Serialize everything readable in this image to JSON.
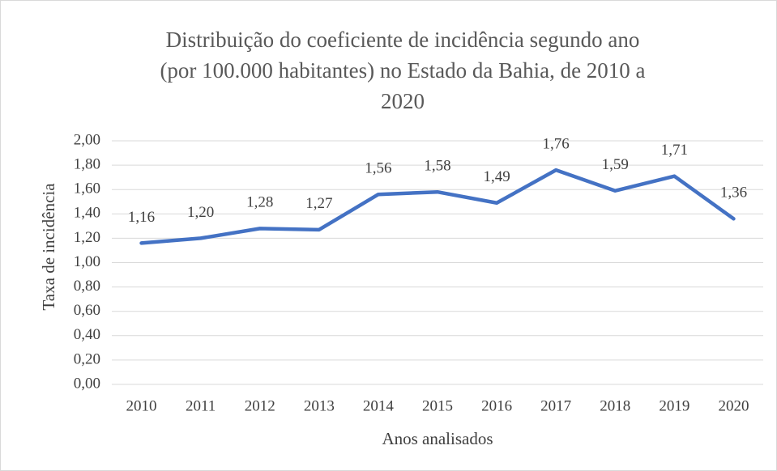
{
  "chart_data": {
    "type": "line",
    "title": [
      "Distribuição do coeficiente de incidência segundo ano",
      "(por 100.000 habitantes) no Estado da Bahia, de 2010 a",
      "2020"
    ],
    "x_label": "Anos analisados",
    "y_label": "Taxa de incidência",
    "categories": [
      "2010",
      "2011",
      "2012",
      "2013",
      "2014",
      "2015",
      "2016",
      "2017",
      "2018",
      "2019",
      "2020"
    ],
    "values": [
      1.16,
      1.2,
      1.28,
      1.27,
      1.56,
      1.58,
      1.49,
      1.76,
      1.59,
      1.71,
      1.36
    ],
    "value_labels": [
      "1,16",
      "1,20",
      "1,28",
      "1,27",
      "1,56",
      "1,58",
      "1,49",
      "1,76",
      "1,59",
      "1,71",
      "1,36"
    ],
    "color": "#4472c4",
    "ylim": [
      0,
      2
    ],
    "yticks": [
      {
        "value": 0,
        "label": "0,00"
      },
      {
        "value": 0.2,
        "label": "0,20"
      },
      {
        "value": 0.4,
        "label": "0,40"
      },
      {
        "value": 0.6,
        "label": "0,60"
      },
      {
        "value": 0.8,
        "label": "0,80"
      },
      {
        "value": 1,
        "label": "1,00"
      },
      {
        "value": 1.2,
        "label": "1,20"
      },
      {
        "value": 1.4,
        "label": "1,40"
      },
      {
        "value": 1.6,
        "label": "1,60"
      },
      {
        "value": 1.8,
        "label": "1,80"
      },
      {
        "value": 2,
        "label": "2,00"
      }
    ],
    "grid": true
  }
}
